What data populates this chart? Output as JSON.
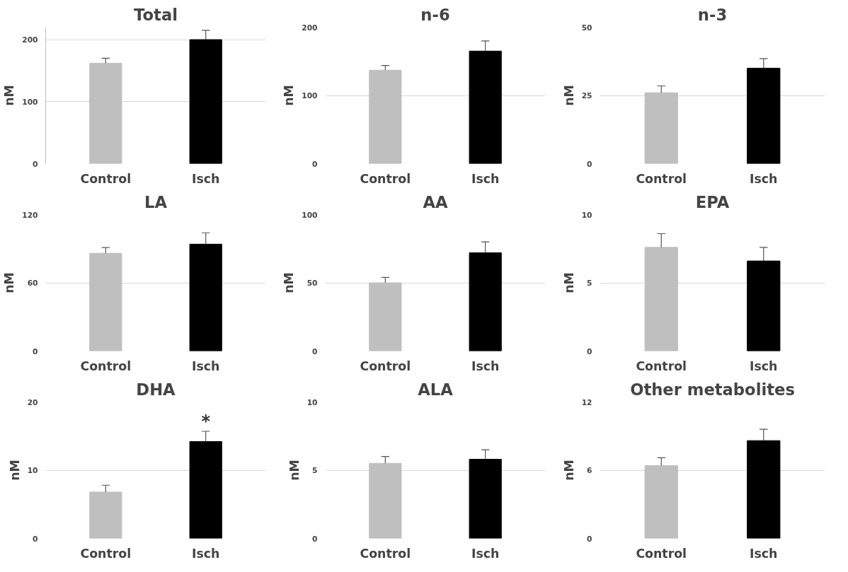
{
  "chart_data": [
    {
      "type": "bar",
      "title": "Total",
      "ylabel": "nM",
      "categories": [
        "Control",
        "Isch"
      ],
      "values": [
        162,
        200
      ],
      "colors": [
        "#bfbfbf",
        "#000000"
      ],
      "errors": [
        [
          162,
          170
        ],
        [
          200,
          215
        ]
      ],
      "ylim": [
        0,
        220
      ],
      "yticks": [
        0,
        100,
        200
      ],
      "grid": "y"
    },
    {
      "type": "bar",
      "title": "n-6",
      "ylabel": "nM",
      "categories": [
        "Control",
        "Isch"
      ],
      "values": [
        137,
        165
      ],
      "colors": [
        "#bfbfbf",
        "#000000"
      ],
      "errors": [
        [
          137,
          144
        ],
        [
          165,
          180
        ]
      ],
      "ylim": [
        0,
        200
      ],
      "yticks": [
        0,
        100,
        200
      ],
      "grid": "y"
    },
    {
      "type": "bar",
      "title": "n-3",
      "ylabel": "nM",
      "categories": [
        "Control",
        "Isch"
      ],
      "values": [
        26,
        35
      ],
      "colors": [
        "#bfbfbf",
        "#000000"
      ],
      "errors": [
        [
          26,
          28.5
        ],
        [
          35,
          38.5
        ]
      ],
      "ylim": [
        0,
        50
      ],
      "yticks": [
        0,
        25,
        50
      ],
      "grid": "y"
    },
    {
      "type": "bar",
      "title": "LA",
      "ylabel": "nM",
      "categories": [
        "Control",
        "Isch"
      ],
      "values": [
        86,
        94
      ],
      "colors": [
        "#bfbfbf",
        "#000000"
      ],
      "errors": [
        [
          86,
          91
        ],
        [
          94,
          104
        ]
      ],
      "ylim": [
        0,
        120
      ],
      "yticks": [
        0,
        60,
        120
      ],
      "grid": "y"
    },
    {
      "type": "bar",
      "title": "AA",
      "ylabel": "nM",
      "categories": [
        "Control",
        "Isch"
      ],
      "values": [
        50,
        72
      ],
      "colors": [
        "#bfbfbf",
        "#000000"
      ],
      "errors": [
        [
          50,
          54
        ],
        [
          72,
          80
        ]
      ],
      "ylim": [
        0,
        100
      ],
      "yticks": [
        0,
        50,
        100
      ],
      "grid": "y"
    },
    {
      "type": "bar",
      "title": "EPA",
      "ylabel": "nM",
      "categories": [
        "Control",
        "Isch"
      ],
      "values": [
        7.6,
        6.6
      ],
      "colors": [
        "#bfbfbf",
        "#000000"
      ],
      "errors": [
        [
          7.6,
          8.6
        ],
        [
          6.6,
          7.6
        ]
      ],
      "ylim": [
        0,
        10
      ],
      "yticks": [
        0,
        5,
        10
      ],
      "grid": "y"
    },
    {
      "type": "bar",
      "title": "DHA",
      "ylabel": "nM",
      "categories": [
        "Control",
        "Isch"
      ],
      "values": [
        6.8,
        14.2
      ],
      "colors": [
        "#bfbfbf",
        "#000000"
      ],
      "errors": [
        [
          6.8,
          7.8
        ],
        [
          14.2,
          15.7
        ]
      ],
      "ylim": [
        0,
        20
      ],
      "yticks": [
        0,
        10,
        20
      ],
      "grid": "y",
      "annotations": [
        {
          "text": "*",
          "x": "Isch",
          "y": 15.7
        }
      ]
    },
    {
      "type": "bar",
      "title": "ALA",
      "ylabel": "nM",
      "categories": [
        "Control",
        "Isch"
      ],
      "values": [
        5.5,
        5.8
      ],
      "colors": [
        "#bfbfbf",
        "#000000"
      ],
      "errors": [
        [
          5.5,
          6.0
        ],
        [
          5.8,
          6.5
        ]
      ],
      "ylim": [
        0,
        10
      ],
      "yticks": [
        0,
        5,
        10
      ],
      "grid": "y"
    },
    {
      "type": "bar",
      "title": "Other metabolites",
      "ylabel": "nM",
      "categories": [
        "Control",
        "Isch"
      ],
      "values": [
        6.4,
        8.6
      ],
      "colors": [
        "#bfbfbf",
        "#000000"
      ],
      "errors": [
        [
          6.4,
          7.1
        ],
        [
          8.6,
          9.6
        ]
      ],
      "ylim": [
        0,
        12
      ],
      "yticks": [
        0,
        6,
        12
      ],
      "grid": "y"
    }
  ]
}
